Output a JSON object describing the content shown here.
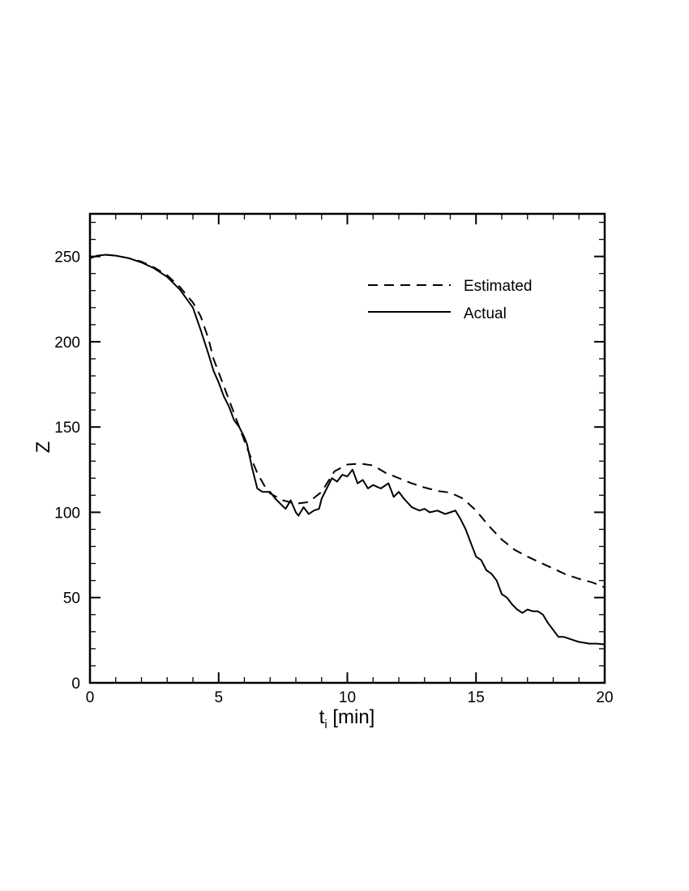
{
  "chart_data": {
    "type": "line",
    "title": "",
    "xlabel": "t",
    "xlabel_subscript": "i",
    "xlabel_unit": " [min]",
    "ylabel": "Z",
    "xlim": [
      0,
      20
    ],
    "ylim": [
      0,
      275
    ],
    "x_ticks": [
      0,
      5,
      10,
      15,
      20
    ],
    "y_ticks": [
      0,
      50,
      100,
      150,
      200,
      250
    ],
    "x_tick_labels": [
      "0",
      "5",
      "10",
      "15",
      "20"
    ],
    "y_tick_labels": [
      "0",
      "50",
      "100",
      "150",
      "200",
      "250"
    ],
    "x_minor_step": 1,
    "y_minor_step": 10,
    "grid": false,
    "legend_position": "top-right",
    "series": [
      {
        "name": "Estimated",
        "style": "dashed",
        "color": "#000000",
        "points": [
          [
            0.0,
            249
          ],
          [
            0.3,
            250.5
          ],
          [
            0.6,
            251
          ],
          [
            1.0,
            250.5
          ],
          [
            1.5,
            249
          ],
          [
            2.0,
            247
          ],
          [
            2.5,
            243.5
          ],
          [
            3.0,
            239
          ],
          [
            3.5,
            232
          ],
          [
            4.0,
            223
          ],
          [
            4.3,
            215
          ],
          [
            4.6,
            202
          ],
          [
            4.8,
            190
          ],
          [
            5.0,
            182
          ],
          [
            5.3,
            170
          ],
          [
            5.6,
            158
          ],
          [
            5.9,
            146
          ],
          [
            6.2,
            134
          ],
          [
            6.5,
            123
          ],
          [
            6.8,
            115
          ],
          [
            7.0,
            111
          ],
          [
            7.5,
            107
          ],
          [
            8.0,
            105
          ],
          [
            8.5,
            106
          ],
          [
            9.0,
            112
          ],
          [
            9.5,
            124
          ],
          [
            10.0,
            128
          ],
          [
            10.5,
            128.5
          ],
          [
            11.0,
            127.5
          ],
          [
            11.5,
            123
          ],
          [
            12.0,
            120
          ],
          [
            12.5,
            117
          ],
          [
            13.0,
            114.5
          ],
          [
            13.5,
            112.5
          ],
          [
            14.0,
            111.5
          ],
          [
            14.5,
            108
          ],
          [
            15.0,
            101
          ],
          [
            15.5,
            92
          ],
          [
            16.0,
            84
          ],
          [
            16.5,
            78
          ],
          [
            17.0,
            74
          ],
          [
            17.5,
            70.5
          ],
          [
            18.0,
            67
          ],
          [
            18.5,
            63.5
          ],
          [
            19.0,
            61
          ],
          [
            19.5,
            59
          ],
          [
            20.0,
            56
          ]
        ]
      },
      {
        "name": "Actual",
        "style": "solid",
        "color": "#000000",
        "points": [
          [
            0.0,
            249
          ],
          [
            0.3,
            250.5
          ],
          [
            0.6,
            251
          ],
          [
            1.0,
            250.5
          ],
          [
            1.5,
            249
          ],
          [
            2.0,
            246.5
          ],
          [
            2.5,
            243
          ],
          [
            3.0,
            238
          ],
          [
            3.5,
            230.5
          ],
          [
            4.0,
            220
          ],
          [
            4.3,
            207
          ],
          [
            4.6,
            193
          ],
          [
            4.8,
            183
          ],
          [
            5.0,
            176
          ],
          [
            5.2,
            168
          ],
          [
            5.4,
            162
          ],
          [
            5.6,
            154
          ],
          [
            5.8,
            150
          ],
          [
            6.0,
            144
          ],
          [
            6.1,
            140
          ],
          [
            6.3,
            126
          ],
          [
            6.5,
            114
          ],
          [
            6.7,
            112
          ],
          [
            7.0,
            112
          ],
          [
            7.2,
            108
          ],
          [
            7.4,
            105
          ],
          [
            7.6,
            102
          ],
          [
            7.8,
            107
          ],
          [
            8.0,
            100
          ],
          [
            8.1,
            98
          ],
          [
            8.3,
            103
          ],
          [
            8.5,
            99
          ],
          [
            8.7,
            101
          ],
          [
            8.9,
            102
          ],
          [
            9.0,
            108
          ],
          [
            9.2,
            114
          ],
          [
            9.4,
            120
          ],
          [
            9.6,
            118
          ],
          [
            9.8,
            122
          ],
          [
            10.0,
            121
          ],
          [
            10.2,
            125
          ],
          [
            10.4,
            117
          ],
          [
            10.6,
            119
          ],
          [
            10.8,
            114
          ],
          [
            11.0,
            116
          ],
          [
            11.3,
            114
          ],
          [
            11.6,
            117
          ],
          [
            11.8,
            109
          ],
          [
            12.0,
            112
          ],
          [
            12.2,
            108
          ],
          [
            12.5,
            103
          ],
          [
            12.8,
            101
          ],
          [
            13.0,
            102
          ],
          [
            13.2,
            100
          ],
          [
            13.5,
            101
          ],
          [
            13.8,
            99
          ],
          [
            14.0,
            100
          ],
          [
            14.2,
            101
          ],
          [
            14.4,
            96
          ],
          [
            14.6,
            90
          ],
          [
            14.8,
            82
          ],
          [
            15.0,
            74
          ],
          [
            15.2,
            72
          ],
          [
            15.4,
            66
          ],
          [
            15.6,
            64
          ],
          [
            15.8,
            60
          ],
          [
            16.0,
            52
          ],
          [
            16.2,
            50
          ],
          [
            16.4,
            46
          ],
          [
            16.6,
            43
          ],
          [
            16.8,
            41
          ],
          [
            17.0,
            43
          ],
          [
            17.2,
            42
          ],
          [
            17.4,
            42
          ],
          [
            17.6,
            40
          ],
          [
            17.8,
            35
          ],
          [
            18.0,
            31
          ],
          [
            18.2,
            27
          ],
          [
            18.4,
            27
          ],
          [
            18.6,
            26
          ],
          [
            18.8,
            25
          ],
          [
            19.0,
            24
          ],
          [
            19.2,
            23.5
          ],
          [
            19.4,
            23
          ],
          [
            19.7,
            23
          ],
          [
            20.0,
            22.5
          ]
        ]
      }
    ]
  }
}
